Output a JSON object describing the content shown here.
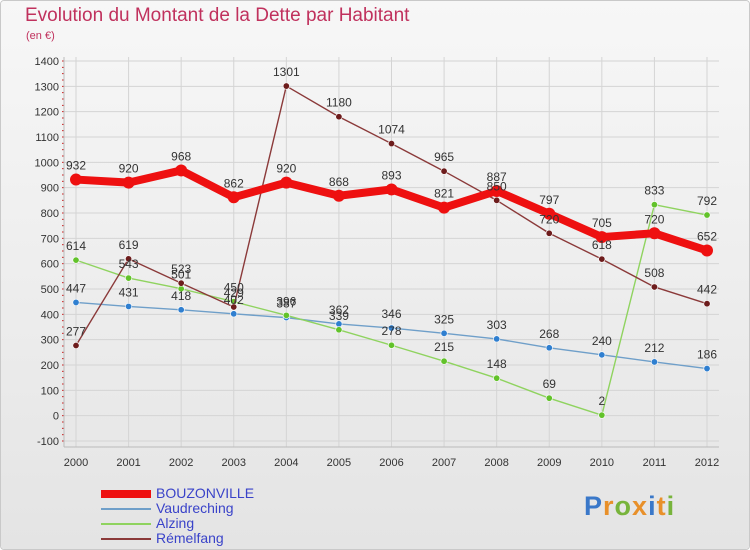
{
  "header": {
    "title": "Evolution du Montant de la Dette par Habitant",
    "subtitle": "(en €)"
  },
  "logo": {
    "text": "Proxiti",
    "letters": [
      "P",
      "r",
      "o",
      "x",
      "i",
      "t",
      "i"
    ],
    "colors": [
      "#3a78c9",
      "#e8902a",
      "#78b43c",
      "#e8902a",
      "#3a78c9",
      "#e8902a",
      "#78b43c"
    ]
  },
  "colors": {
    "title": "#c0315d",
    "legend_text": "#3a43c9",
    "grid": "#d4d4d4",
    "axis_ticks": "#cc2222"
  },
  "chart_data": {
    "type": "line",
    "title": "Evolution du Montant de la Dette par Habitant",
    "subtitle": "(en €)",
    "xlabel": "",
    "ylabel": "",
    "x": [
      "2000",
      "2001",
      "2002",
      "2003",
      "2004",
      "2005",
      "2006",
      "2007",
      "2008",
      "2009",
      "2010",
      "2011",
      "2012"
    ],
    "ylim": [
      -100,
      1400
    ],
    "yticks": [
      -100,
      0,
      100,
      200,
      300,
      400,
      500,
      600,
      700,
      800,
      900,
      1000,
      1100,
      1200,
      1300,
      1400
    ],
    "grid": true,
    "legend_position": "bottom-left",
    "series": [
      {
        "name": "Vaudreching",
        "color": "#6f9fc9",
        "marker": "#2f7fd0",
        "values": [
          447,
          431,
          418,
          402,
          387,
          362,
          346,
          325,
          303,
          268,
          240,
          212,
          186
        ],
        "labels": [
          "447",
          "431",
          "418",
          "402",
          "387",
          "362",
          "346",
          "325",
          "303",
          "268",
          "240",
          "212",
          "186"
        ]
      },
      {
        "name": "Alzing",
        "color": "#8fd35f",
        "marker": "#62c22a",
        "values": [
          614,
          543,
          501,
          450,
          396,
          339,
          278,
          215,
          148,
          69,
          2,
          833,
          792
        ],
        "labels": [
          "614",
          "543",
          "501",
          "450",
          "396",
          "339",
          "278",
          "215",
          "148",
          "69",
          "2",
          "833",
          "792"
        ]
      },
      {
        "name": "Rémelfang",
        "color": "#8b3a3a",
        "marker": "#6d1c1c",
        "values": [
          277,
          619,
          523,
          429,
          1301,
          1180,
          1074,
          965,
          850,
          720,
          618,
          508,
          442
        ],
        "labels": [
          "277",
          "619",
          "523",
          "429",
          "1301",
          "1180",
          "1074",
          "965",
          "850",
          "720",
          "618",
          "508",
          "442"
        ]
      },
      {
        "name": "BOUZONVILLE",
        "color": "#ee1010",
        "marker": "#ee1010",
        "values": [
          932,
          920,
          968,
          862,
          920,
          868,
          893,
          821,
          887,
          797,
          705,
          720,
          652
        ],
        "labels": [
          "932",
          "920",
          "968",
          "862",
          "920",
          "868",
          "893",
          "821",
          "887",
          "797",
          "705",
          "720",
          "652"
        ]
      }
    ],
    "legend": [
      "BOUZONVILLE",
      "Vaudreching",
      "Alzing",
      "Rémelfang"
    ]
  }
}
